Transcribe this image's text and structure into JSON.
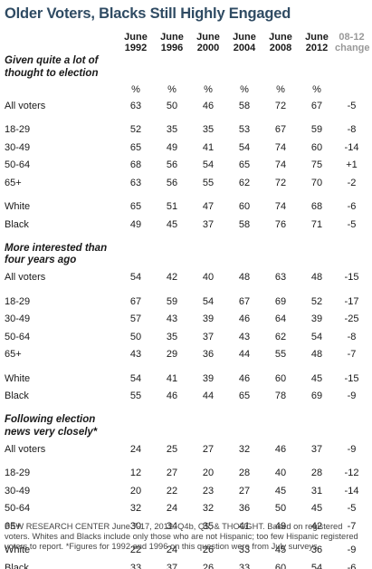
{
  "title": "Older Voters, Blacks Still Highly Engaged",
  "columns": [
    "June 1992",
    "June 1996",
    "June 2000",
    "June 2004",
    "June 2008",
    "June 2012",
    "08-12 change"
  ],
  "column_lines": [
    [
      "June",
      "1992"
    ],
    [
      "June",
      "1996"
    ],
    [
      "June",
      "2000"
    ],
    [
      "June",
      "2004"
    ],
    [
      "June",
      "2008"
    ],
    [
      "June",
      "2012"
    ],
    [
      "08-12",
      "change"
    ]
  ],
  "percent_sign": "%",
  "sections": [
    {
      "heading": "Given quite a lot of thought to election",
      "rows": [
        {
          "label": "All voters",
          "values": [
            "63",
            "50",
            "46",
            "58",
            "72",
            "67"
          ],
          "change": "-5"
        },
        {
          "label": "18-29",
          "values": [
            "52",
            "35",
            "35",
            "53",
            "67",
            "59"
          ],
          "change": "-8"
        },
        {
          "label": "30-49",
          "values": [
            "65",
            "49",
            "41",
            "54",
            "74",
            "60"
          ],
          "change": "-14"
        },
        {
          "label": "50-64",
          "values": [
            "68",
            "56",
            "54",
            "65",
            "74",
            "75"
          ],
          "change": "+1"
        },
        {
          "label": "65+",
          "values": [
            "63",
            "56",
            "55",
            "62",
            "72",
            "70"
          ],
          "change": "-2"
        },
        {
          "label": "White",
          "values": [
            "65",
            "51",
            "47",
            "60",
            "74",
            "68"
          ],
          "change": "-6"
        },
        {
          "label": "Black",
          "values": [
            "49",
            "45",
            "37",
            "58",
            "76",
            "71"
          ],
          "change": "-5"
        }
      ]
    },
    {
      "heading": "More interested than four years ago",
      "rows": [
        {
          "label": "All voters",
          "values": [
            "54",
            "42",
            "40",
            "48",
            "63",
            "48"
          ],
          "change": "-15"
        },
        {
          "label": "18-29",
          "values": [
            "67",
            "59",
            "54",
            "67",
            "69",
            "52"
          ],
          "change": "-17"
        },
        {
          "label": "30-49",
          "values": [
            "57",
            "43",
            "39",
            "46",
            "64",
            "39"
          ],
          "change": "-25"
        },
        {
          "label": "50-64",
          "values": [
            "50",
            "35",
            "37",
            "43",
            "62",
            "54"
          ],
          "change": "-8"
        },
        {
          "label": "65+",
          "values": [
            "43",
            "29",
            "36",
            "44",
            "55",
            "48"
          ],
          "change": "-7"
        },
        {
          "label": "White",
          "values": [
            "54",
            "41",
            "39",
            "46",
            "60",
            "45"
          ],
          "change": "-15"
        },
        {
          "label": "Black",
          "values": [
            "55",
            "46",
            "44",
            "65",
            "78",
            "69"
          ],
          "change": "-9"
        }
      ]
    },
    {
      "heading": "Following election news very closely*",
      "rows": [
        {
          "label": "All voters",
          "values": [
            "24",
            "25",
            "27",
            "32",
            "46",
            "37"
          ],
          "change": "-9"
        },
        {
          "label": "18-29",
          "values": [
            "12",
            "27",
            "20",
            "28",
            "40",
            "28"
          ],
          "change": "-12"
        },
        {
          "label": "30-49",
          "values": [
            "20",
            "22",
            "23",
            "27",
            "45",
            "31"
          ],
          "change": "-14"
        },
        {
          "label": "50-64",
          "values": [
            "32",
            "24",
            "32",
            "36",
            "50",
            "45"
          ],
          "change": "-5"
        },
        {
          "label": "65+",
          "values": [
            "30",
            "34",
            "35",
            "41",
            "49",
            "42"
          ],
          "change": "-7"
        },
        {
          "label": "White",
          "values": [
            "22",
            "24",
            "26",
            "33",
            "45",
            "36"
          ],
          "change": "-9"
        },
        {
          "label": "Black",
          "values": [
            "33",
            "37",
            "26",
            "33",
            "60",
            "54"
          ],
          "change": "-6"
        }
      ]
    }
  ],
  "note": "PEW RESEARCH CENTER June 7-17, 2012. Q4b, Q5, & THOUGHT. Based on registered voters. Whites and Blacks include only those who are not Hispanic; too few Hispanic registered voters to report. *Figures for 1992 and 1996 on this question were from July surveys.",
  "chart_data": {
    "type": "table",
    "title": "Older Voters, Blacks Still Highly Engaged",
    "columns": [
      "June 1992",
      "June 1996",
      "June 2000",
      "June 2004",
      "June 2008",
      "June 2012",
      "08-12 change"
    ],
    "unit": "%",
    "tables": [
      {
        "name": "Given quite a lot of thought to election",
        "rows": [
          [
            "All voters",
            63,
            50,
            46,
            58,
            72,
            67,
            -5
          ],
          [
            "18-29",
            52,
            35,
            35,
            53,
            67,
            59,
            -8
          ],
          [
            "30-49",
            65,
            49,
            41,
            54,
            74,
            60,
            -14
          ],
          [
            "50-64",
            68,
            56,
            54,
            65,
            74,
            75,
            1
          ],
          [
            "65+",
            63,
            56,
            55,
            62,
            72,
            70,
            -2
          ],
          [
            "White",
            65,
            51,
            47,
            60,
            74,
            68,
            -6
          ],
          [
            "Black",
            49,
            45,
            37,
            58,
            76,
            71,
            -5
          ]
        ]
      },
      {
        "name": "More interested than four years ago",
        "rows": [
          [
            "All voters",
            54,
            42,
            40,
            48,
            63,
            48,
            -15
          ],
          [
            "18-29",
            67,
            59,
            54,
            67,
            69,
            52,
            -17
          ],
          [
            "30-49",
            57,
            43,
            39,
            46,
            64,
            39,
            -25
          ],
          [
            "50-64",
            50,
            35,
            37,
            43,
            62,
            54,
            -8
          ],
          [
            "65+",
            43,
            29,
            36,
            44,
            55,
            48,
            -7
          ],
          [
            "White",
            54,
            41,
            39,
            46,
            60,
            45,
            -15
          ],
          [
            "Black",
            55,
            46,
            44,
            65,
            78,
            69,
            -9
          ]
        ]
      },
      {
        "name": "Following election news very closely*",
        "rows": [
          [
            "All voters",
            24,
            25,
            27,
            32,
            46,
            37,
            -9
          ],
          [
            "18-29",
            12,
            27,
            20,
            28,
            40,
            28,
            -12
          ],
          [
            "30-49",
            20,
            22,
            23,
            27,
            45,
            31,
            -14
          ],
          [
            "50-64",
            32,
            24,
            32,
            36,
            50,
            45,
            -5
          ],
          [
            "65+",
            30,
            34,
            35,
            41,
            49,
            42,
            -7
          ],
          [
            "White",
            22,
            24,
            26,
            33,
            45,
            36,
            -9
          ],
          [
            "Black",
            33,
            37,
            26,
            33,
            60,
            54,
            -6
          ]
        ]
      }
    ]
  }
}
